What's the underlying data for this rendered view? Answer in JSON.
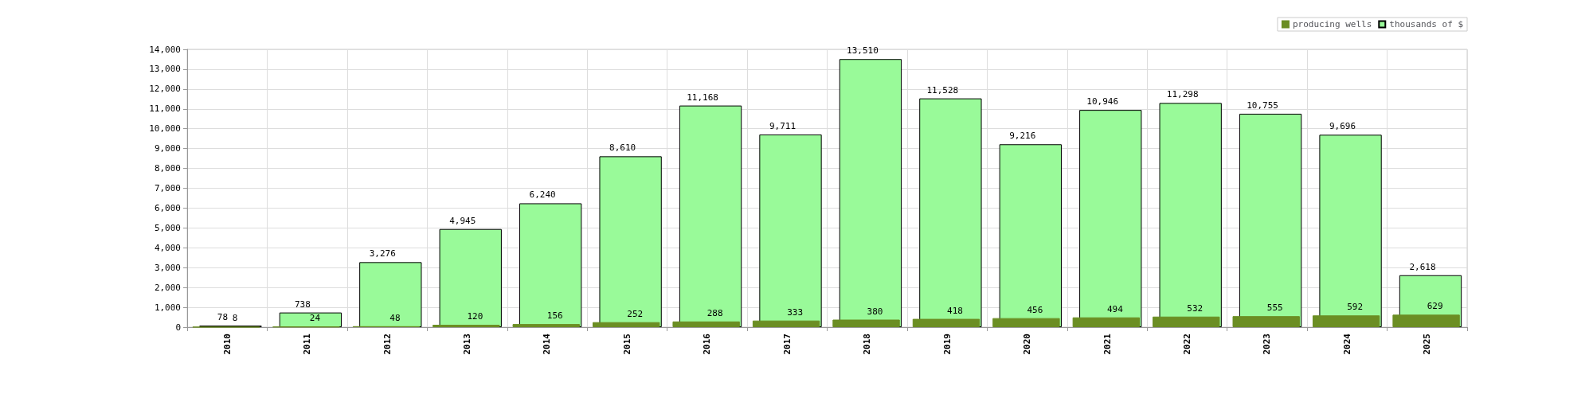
{
  "chart_data": {
    "type": "bar",
    "categories": [
      "2010",
      "2011",
      "2012",
      "2013",
      "2014",
      "2015",
      "2016",
      "2017",
      "2018",
      "2019",
      "2020",
      "2021",
      "2022",
      "2023",
      "2024",
      "2025"
    ],
    "series": [
      {
        "name": "producing wells",
        "color": "#6b8e23",
        "values": [
          8,
          24,
          48,
          120,
          156,
          252,
          288,
          333,
          380,
          418,
          456,
          494,
          532,
          555,
          592,
          629
        ],
        "value_labels": [
          "8",
          "24",
          "48",
          "120",
          "156",
          "252",
          "288",
          "333",
          "380",
          "418",
          "456",
          "494",
          "532",
          "555",
          "592",
          "629"
        ]
      },
      {
        "name": "thousands of $",
        "color": "#99fa99",
        "values": [
          78,
          738,
          3276,
          4945,
          6240,
          8610,
          11168,
          9711,
          13510,
          11528,
          9216,
          10946,
          11298,
          10755,
          9696,
          2618
        ],
        "value_labels": [
          "78",
          "738",
          "3,276",
          "4,945",
          "6,240",
          "8,610",
          "11,168",
          "9,711",
          "13,510",
          "11,528",
          "9,216",
          "10,946",
          "11,298",
          "10,755",
          "9,696",
          "2,618"
        ]
      }
    ],
    "ylim": [
      0,
      14000
    ],
    "yticks": [
      0,
      {
        "value": 1000,
        "label": "1,000"
      },
      {
        "value": 2000,
        "label": "2,000"
      },
      {
        "value": 3000,
        "label": "3,000"
      },
      {
        "value": 4000,
        "label": "4,000"
      },
      {
        "value": 5000,
        "label": "5,000"
      },
      {
        "value": 6000,
        "label": "6,000"
      },
      {
        "value": 7000,
        "label": "7,000"
      },
      {
        "value": 8000,
        "label": "8,000"
      },
      {
        "value": 9000,
        "label": "9,000"
      },
      {
        "value": 10000,
        "label": "10,000"
      },
      {
        "value": 11000,
        "label": "11,000"
      },
      {
        "value": 12000,
        "label": "12,000"
      },
      {
        "value": 13000,
        "label": "13,000"
      },
      {
        "value": 14000,
        "label": "14,000"
      }
    ],
    "grid": true,
    "legend": "top right"
  }
}
